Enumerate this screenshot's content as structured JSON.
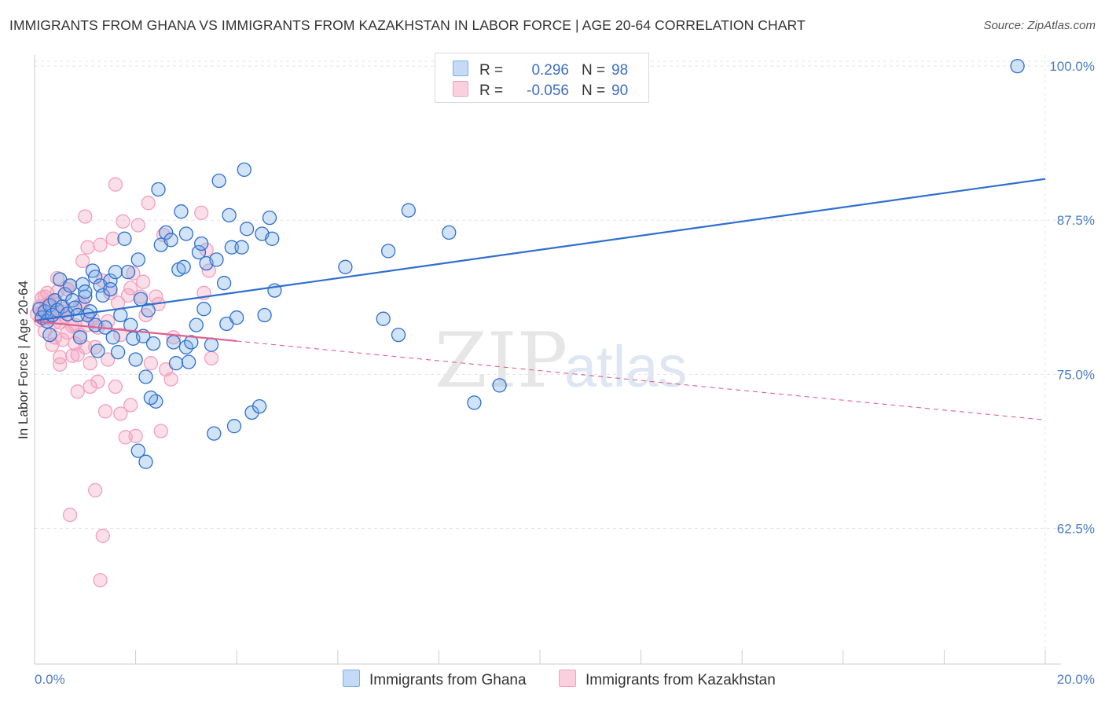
{
  "title": "IMMIGRANTS FROM GHANA VS IMMIGRANTS FROM KAZAKHSTAN IN LABOR FORCE | AGE 20-64 CORRELATION CHART",
  "source": "Source: ZipAtlas.com",
  "watermark": {
    "zip": "ZIP",
    "atlas": "atlas"
  },
  "legend": {
    "ghana": {
      "r_label": "R =",
      "r_value": "0.296",
      "n_label": "N =",
      "n_value": "98"
    },
    "kazakhstan": {
      "r_label": "R =",
      "r_value": "-0.056",
      "n_label": "N =",
      "n_value": "90"
    }
  },
  "bottom_legend": {
    "ghana": "Immigrants from Ghana",
    "kazakhstan": "Immigrants from Kazakhstan"
  },
  "colors": {
    "ghana": "#7aaee8",
    "ghana_line": "#2f6fcf",
    "kazakhstan": "#f2a0bd",
    "kazakhstan_line": "#e0608f",
    "axis_text": "#4a7cc7"
  },
  "chart_data": {
    "type": "scatter",
    "xlabel": "",
    "ylabel": "In Labor Force | Age 20-64",
    "xlim": [
      0,
      20
    ],
    "ylim": [
      51.5,
      100.9
    ],
    "x_tick_labels": [
      "0.0%",
      "20.0%"
    ],
    "y_ticks": [
      62.5,
      75.0,
      87.5,
      100.0
    ],
    "y_tick_labels": [
      "62.5%",
      "75.0%",
      "87.5%",
      "100.0%"
    ],
    "grid": true,
    "series": [
      {
        "name": "Immigrants from Ghana",
        "points": [
          [
            0.1,
            80.3
          ],
          [
            0.15,
            79.6
          ],
          [
            0.2,
            80.1
          ],
          [
            0.25,
            79.3
          ],
          [
            0.3,
            80.6
          ],
          [
            0.35,
            79.8
          ],
          [
            0.4,
            81.0
          ],
          [
            0.45,
            80.2
          ],
          [
            0.5,
            82.7
          ],
          [
            0.55,
            80.5
          ],
          [
            0.6,
            81.5
          ],
          [
            0.65,
            79.9
          ],
          [
            0.7,
            82.2
          ],
          [
            0.75,
            81.0
          ],
          [
            0.8,
            80.4
          ],
          [
            0.9,
            78.0
          ],
          [
            0.95,
            82.3
          ],
          [
            1.0,
            81.3
          ],
          [
            1.05,
            79.8
          ],
          [
            1.1,
            80.1
          ],
          [
            1.15,
            83.4
          ],
          [
            1.2,
            82.9
          ],
          [
            1.25,
            76.9
          ],
          [
            1.3,
            82.2
          ],
          [
            1.35,
            81.4
          ],
          [
            1.4,
            78.8
          ],
          [
            1.5,
            82.6
          ],
          [
            1.55,
            78.0
          ],
          [
            1.6,
            83.3
          ],
          [
            1.65,
            76.8
          ],
          [
            1.7,
            79.8
          ],
          [
            1.78,
            86.0
          ],
          [
            1.85,
            83.3
          ],
          [
            1.9,
            79.0
          ],
          [
            1.95,
            77.9
          ],
          [
            2.0,
            76.2
          ],
          [
            2.05,
            84.3
          ],
          [
            2.1,
            81.1
          ],
          [
            2.15,
            78.1
          ],
          [
            2.2,
            74.8
          ],
          [
            2.25,
            80.2
          ],
          [
            2.35,
            77.5
          ],
          [
            2.4,
            72.8
          ],
          [
            2.45,
            90.0
          ],
          [
            2.5,
            85.5
          ],
          [
            2.6,
            86.5
          ],
          [
            2.7,
            85.9
          ],
          [
            2.75,
            77.6
          ],
          [
            2.8,
            75.9
          ],
          [
            2.85,
            83.5
          ],
          [
            2.9,
            88.2
          ],
          [
            2.95,
            83.7
          ],
          [
            3.0,
            77.2
          ],
          [
            3.05,
            76.0
          ],
          [
            3.1,
            77.6
          ],
          [
            3.2,
            79.0
          ],
          [
            3.25,
            84.9
          ],
          [
            3.3,
            85.6
          ],
          [
            3.35,
            80.3
          ],
          [
            3.4,
            84.0
          ],
          [
            3.5,
            77.4
          ],
          [
            3.55,
            70.2
          ],
          [
            3.6,
            84.3
          ],
          [
            3.65,
            90.7
          ],
          [
            3.75,
            82.4
          ],
          [
            3.8,
            79.1
          ],
          [
            3.85,
            87.9
          ],
          [
            3.9,
            85.3
          ],
          [
            4.0,
            79.6
          ],
          [
            4.1,
            85.3
          ],
          [
            4.15,
            91.6
          ],
          [
            4.2,
            86.8
          ],
          [
            4.3,
            71.9
          ],
          [
            4.45,
            72.4
          ],
          [
            4.5,
            86.4
          ],
          [
            4.55,
            79.8
          ],
          [
            4.65,
            87.7
          ],
          [
            4.7,
            86.0
          ],
          [
            4.75,
            81.8
          ],
          [
            6.15,
            83.7
          ],
          [
            6.9,
            79.5
          ],
          [
            7.0,
            85.0
          ],
          [
            7.2,
            78.2
          ],
          [
            7.4,
            88.3
          ],
          [
            8.2,
            86.5
          ],
          [
            8.7,
            72.7
          ],
          [
            9.2,
            74.1
          ],
          [
            1.0,
            81.7
          ],
          [
            0.85,
            79.8
          ],
          [
            3.95,
            70.8
          ],
          [
            2.05,
            68.8
          ],
          [
            2.2,
            67.9
          ],
          [
            1.5,
            81.9
          ],
          [
            19.45,
            100.0
          ],
          [
            0.3,
            78.2
          ],
          [
            1.2,
            79.0
          ],
          [
            3.0,
            86.4
          ],
          [
            2.3,
            73.1
          ]
        ]
      },
      {
        "name": "Immigrants from Kazakhstan",
        "points": [
          [
            0.05,
            79.9
          ],
          [
            0.1,
            80.5
          ],
          [
            0.12,
            79.4
          ],
          [
            0.15,
            81.2
          ],
          [
            0.2,
            80.0
          ],
          [
            0.25,
            80.7
          ],
          [
            0.3,
            79.6
          ],
          [
            0.35,
            80.9
          ],
          [
            0.4,
            78.0
          ],
          [
            0.45,
            81.7
          ],
          [
            0.5,
            79.2
          ],
          [
            0.55,
            77.8
          ],
          [
            0.6,
            80.3
          ],
          [
            0.65,
            78.4
          ],
          [
            0.7,
            82.2
          ],
          [
            0.75,
            76.5
          ],
          [
            0.8,
            79.0
          ],
          [
            0.85,
            73.6
          ],
          [
            0.9,
            80.6
          ],
          [
            0.95,
            84.2
          ],
          [
            1.0,
            87.8
          ],
          [
            1.05,
            85.3
          ],
          [
            1.1,
            75.9
          ],
          [
            1.15,
            79.5
          ],
          [
            1.2,
            77.2
          ],
          [
            1.25,
            74.4
          ],
          [
            1.3,
            85.5
          ],
          [
            1.35,
            82.6
          ],
          [
            1.4,
            72.0
          ],
          [
            1.45,
            76.2
          ],
          [
            1.5,
            81.6
          ],
          [
            1.55,
            86.0
          ],
          [
            1.6,
            90.4
          ],
          [
            1.65,
            80.8
          ],
          [
            1.7,
            71.8
          ],
          [
            1.75,
            87.4
          ],
          [
            1.8,
            69.9
          ],
          [
            1.85,
            81.4
          ],
          [
            1.9,
            72.5
          ],
          [
            1.95,
            83.2
          ],
          [
            2.0,
            70.0
          ],
          [
            2.05,
            87.1
          ],
          [
            2.1,
            81.3
          ],
          [
            2.15,
            82.5
          ],
          [
            2.2,
            79.8
          ],
          [
            2.25,
            88.9
          ],
          [
            2.3,
            75.9
          ],
          [
            2.4,
            81.3
          ],
          [
            2.45,
            80.7
          ],
          [
            2.5,
            70.4
          ],
          [
            2.55,
            86.3
          ],
          [
            2.6,
            75.4
          ],
          [
            2.7,
            74.6
          ],
          [
            3.3,
            88.1
          ],
          [
            3.35,
            81.6
          ],
          [
            3.4,
            85.1
          ],
          [
            3.45,
            83.4
          ],
          [
            3.5,
            76.3
          ],
          [
            1.2,
            65.6
          ],
          [
            0.7,
            63.6
          ],
          [
            1.35,
            61.9
          ],
          [
            1.3,
            58.3
          ],
          [
            0.6,
            79.7
          ],
          [
            0.3,
            80.8
          ],
          [
            0.5,
            76.4
          ],
          [
            0.9,
            78.2
          ],
          [
            1.0,
            77.2
          ],
          [
            0.4,
            79.2
          ],
          [
            0.2,
            78.5
          ],
          [
            0.8,
            77.5
          ],
          [
            1.1,
            74.0
          ],
          [
            0.65,
            81.9
          ],
          [
            0.45,
            82.8
          ],
          [
            0.25,
            81.6
          ],
          [
            0.55,
            80.1
          ],
          [
            0.35,
            77.4
          ],
          [
            1.25,
            78.8
          ],
          [
            0.15,
            80.0
          ],
          [
            1.45,
            79.3
          ],
          [
            0.75,
            78.9
          ],
          [
            0.85,
            76.6
          ],
          [
            1.05,
            79.0
          ],
          [
            1.6,
            74.0
          ],
          [
            0.95,
            80.8
          ],
          [
            1.7,
            78.2
          ],
          [
            1.9,
            82.0
          ],
          [
            0.5,
            75.8
          ],
          [
            0.3,
            79.9
          ],
          [
            2.75,
            78.0
          ],
          [
            0.2,
            81.3
          ]
        ]
      }
    ],
    "trend_lines": [
      {
        "series": "Immigrants from Ghana",
        "x": [
          0.0,
          20.0
        ],
        "y": [
          79.35,
          90.85
        ]
      },
      {
        "series": "Immigrants from Kazakhstan",
        "x": [
          0.0,
          20.0
        ],
        "y": [
          79.3,
          71.3
        ],
        "solid_until_x": 4.0
      }
    ]
  }
}
